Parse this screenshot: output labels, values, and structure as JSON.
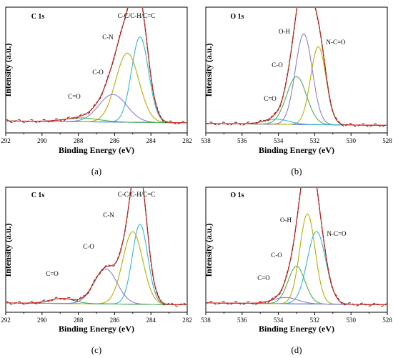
{
  "chart_data": [
    {
      "type": "line",
      "panel": "a",
      "caption": "(a)",
      "title": "C 1s",
      "xlabel": "Binding Energy (eV)",
      "ylabel": "Intensity (a.u.)",
      "x_reversed": true,
      "xlim": [
        282,
        292
      ],
      "ylim": [
        0,
        1
      ],
      "xticks": [
        292,
        290,
        288,
        286,
        284,
        282
      ],
      "xtick_labels": [
        "292",
        "290",
        "288",
        "286",
        "284",
        "282"
      ],
      "baseline": 0.08,
      "components": [
        {
          "label": "C-C/C-H/C=C",
          "center": 284.6,
          "fwhm": 1.1,
          "height": 0.68,
          "color": "#35b7d2"
        },
        {
          "label": "C-N",
          "center": 285.3,
          "fwhm": 1.5,
          "height": 0.55,
          "color": "#b3b000"
        },
        {
          "label": "C-O",
          "center": 286.1,
          "fwhm": 1.8,
          "height": 0.22,
          "color": "#8a7ed6"
        },
        {
          "label": "C=O",
          "center": 287.8,
          "fwhm": 2.2,
          "height": 0.03,
          "color": "#4caf50"
        }
      ],
      "envelope_color": "#d9302a",
      "experimental_style": "dashed",
      "annotations": [
        "C=O",
        "C-O",
        "C-N",
        "C-C/C-H/C=C"
      ]
    },
    {
      "type": "line",
      "panel": "b",
      "caption": "(b)",
      "title": "O 1s",
      "xlabel": "Binding Energy (eV)",
      "ylabel": "Intensity (a.u.)",
      "x_reversed": true,
      "xlim": [
        528,
        538
      ],
      "ylim": [
        0,
        1
      ],
      "xticks": [
        538,
        536,
        534,
        532,
        530,
        528
      ],
      "xtick_labels": [
        "538",
        "536",
        "534",
        "532",
        "530",
        "528"
      ],
      "baseline": 0.06,
      "components": [
        {
          "label": "N-C=O",
          "center": 531.8,
          "fwhm": 1.0,
          "height": 0.62,
          "color": "#b3b000"
        },
        {
          "label": "O-H",
          "center": 532.6,
          "fwhm": 1.1,
          "height": 0.72,
          "color": "#8a7ed6"
        },
        {
          "label": "C-O",
          "center": 533.0,
          "fwhm": 1.3,
          "height": 0.38,
          "color": "#4caf50"
        },
        {
          "label": "C=O",
          "center": 534.1,
          "fwhm": 1.6,
          "height": 0.04,
          "color": "#35b7d2"
        }
      ],
      "envelope_color": "#d9302a",
      "experimental_style": "dashed",
      "annotations": [
        "C=O",
        "C-O",
        "O-H",
        "N-C=O"
      ]
    },
    {
      "type": "line",
      "panel": "c",
      "caption": "(c)",
      "title": "C 1s",
      "xlabel": "Binding Energy (eV)",
      "ylabel": "Intensity (a.u.)",
      "x_reversed": true,
      "xlim": [
        282,
        292
      ],
      "ylim": [
        0,
        1
      ],
      "xticks": [
        292,
        290,
        288,
        286,
        284,
        282
      ],
      "xtick_labels": [
        "292",
        "290",
        "288",
        "286",
        "284",
        "282"
      ],
      "baseline": 0.06,
      "components": [
        {
          "label": "C-C/C-H/C=C",
          "center": 284.6,
          "fwhm": 1.0,
          "height": 0.64,
          "color": "#35b7d2"
        },
        {
          "label": "C-N",
          "center": 285.0,
          "fwhm": 1.3,
          "height": 0.58,
          "color": "#b3b000"
        },
        {
          "label": "C-O",
          "center": 286.5,
          "fwhm": 1.5,
          "height": 0.28,
          "color": "#8a7ed6"
        },
        {
          "label": "C=O",
          "center": 288.9,
          "fwhm": 1.6,
          "height": 0.04,
          "color": "#4caf50"
        }
      ],
      "envelope_color": "#d9302a",
      "experimental_style": "dashed",
      "annotations": [
        "C=O",
        "C-O",
        "C-N",
        "C-C/C-H/C=C"
      ]
    },
    {
      "type": "line",
      "panel": "d",
      "caption": "(d)",
      "title": "O 1s",
      "xlabel": "Binding Energy (eV)",
      "ylabel": "Intensity (a.u.)",
      "x_reversed": true,
      "xlim": [
        528,
        538
      ],
      "ylim": [
        0,
        1
      ],
      "xticks": [
        538,
        536,
        534,
        532,
        530,
        528
      ],
      "xtick_labels": [
        "538",
        "536",
        "534",
        "532",
        "530",
        "528"
      ],
      "baseline": 0.06,
      "components": [
        {
          "label": "N-C=O",
          "center": 531.9,
          "fwhm": 1.2,
          "height": 0.58,
          "color": "#35b7d2"
        },
        {
          "label": "O-H",
          "center": 532.4,
          "fwhm": 1.0,
          "height": 0.72,
          "color": "#b3b000"
        },
        {
          "label": "C-O",
          "center": 533.0,
          "fwhm": 1.1,
          "height": 0.3,
          "color": "#4caf50"
        },
        {
          "label": "C=O",
          "center": 533.6,
          "fwhm": 1.6,
          "height": 0.05,
          "color": "#8a7ed6"
        }
      ],
      "envelope_color": "#d9302a",
      "experimental_style": "dashed",
      "annotations": [
        "C=O",
        "C-O",
        "O-H",
        "N-C=O"
      ]
    }
  ]
}
